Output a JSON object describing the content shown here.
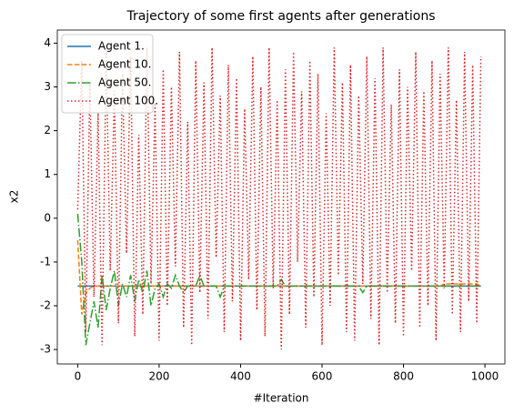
{
  "chart_data": {
    "type": "line",
    "title": "Trajectory of some first agents after generations",
    "xlabel": "#Iteration",
    "ylabel": "x2",
    "x": [
      0,
      10,
      20,
      30,
      40,
      50,
      60,
      70,
      80,
      90,
      100,
      110,
      120,
      130,
      140,
      150,
      160,
      170,
      180,
      190,
      200,
      210,
      220,
      230,
      240,
      250,
      260,
      270,
      280,
      290,
      300,
      310,
      320,
      330,
      340,
      350,
      360,
      370,
      380,
      390,
      400,
      410,
      420,
      430,
      440,
      450,
      460,
      470,
      480,
      490,
      500,
      510,
      520,
      530,
      540,
      550,
      560,
      570,
      580,
      590,
      600,
      610,
      620,
      630,
      640,
      650,
      660,
      670,
      680,
      690,
      700,
      710,
      720,
      730,
      740,
      750,
      760,
      770,
      780,
      790,
      800,
      810,
      820,
      830,
      840,
      850,
      860,
      870,
      880,
      890,
      900,
      910,
      920,
      930,
      940,
      950,
      960,
      970,
      980,
      990
    ],
    "series": [
      {
        "name": "Agent 1.",
        "color": "#1f77b4",
        "linestyle": "solid",
        "values": [
          -1.55,
          -1.55,
          -1.55,
          -1.55,
          -1.55,
          -1.55,
          -1.55,
          -1.55,
          -1.55,
          -1.55,
          -1.55,
          -1.55,
          -1.55,
          -1.55,
          -1.55,
          -1.55,
          -1.55,
          -1.55,
          -1.55,
          -1.55,
          -1.55,
          -1.55,
          -1.55,
          -1.55,
          -1.55,
          -1.55,
          -1.55,
          -1.55,
          -1.55,
          -1.55,
          -1.55,
          -1.55,
          -1.55,
          -1.55,
          -1.55,
          -1.55,
          -1.55,
          -1.55,
          -1.55,
          -1.55,
          -1.55,
          -1.55,
          -1.55,
          -1.55,
          -1.55,
          -1.55,
          -1.55,
          -1.55,
          -1.55,
          -1.55,
          -1.55,
          -1.55,
          -1.55,
          -1.55,
          -1.55,
          -1.55,
          -1.55,
          -1.55,
          -1.55,
          -1.55,
          -1.55,
          -1.55,
          -1.55,
          -1.55,
          -1.55,
          -1.55,
          -1.55,
          -1.55,
          -1.55,
          -1.55,
          -1.55,
          -1.55,
          -1.55,
          -1.55,
          -1.55,
          -1.55,
          -1.55,
          -1.55,
          -1.55,
          -1.55,
          -1.55,
          -1.55,
          -1.55,
          -1.55,
          -1.55,
          -1.55,
          -1.55,
          -1.55,
          -1.55,
          -1.55,
          -1.55,
          -1.55,
          -1.55,
          -1.55,
          -1.55,
          -1.55,
          -1.55,
          -1.55,
          -1.55,
          -1.55
        ]
      },
      {
        "name": "Agent 10.",
        "color": "#ff7f0e",
        "linestyle": "dashed",
        "values": [
          -0.5,
          -2.2,
          -1.7,
          -1.6,
          -1.55,
          -1.55,
          -1.55,
          -1.55,
          -1.55,
          -1.55,
          -1.55,
          -1.55,
          -1.55,
          -1.55,
          -1.55,
          -1.55,
          -1.55,
          -1.55,
          -1.55,
          -1.55,
          -1.55,
          -1.55,
          -1.55,
          -1.55,
          -1.55,
          -1.55,
          -1.55,
          -1.55,
          -1.55,
          -1.55,
          -1.55,
          -1.55,
          -1.55,
          -1.55,
          -1.55,
          -1.55,
          -1.55,
          -1.55,
          -1.55,
          -1.55,
          -1.55,
          -1.55,
          -1.55,
          -1.55,
          -1.55,
          -1.55,
          -1.55,
          -1.55,
          -1.55,
          -1.55,
          -1.55,
          -1.55,
          -1.55,
          -1.55,
          -1.55,
          -1.55,
          -1.55,
          -1.55,
          -1.55,
          -1.55,
          -1.55,
          -1.55,
          -1.55,
          -1.55,
          -1.55,
          -1.55,
          -1.55,
          -1.55,
          -1.55,
          -1.55,
          -1.55,
          -1.55,
          -1.55,
          -1.55,
          -1.55,
          -1.55,
          -1.55,
          -1.55,
          -1.55,
          -1.55,
          -1.55,
          -1.55,
          -1.55,
          -1.55,
          -1.55,
          -1.55,
          -1.55,
          -1.55,
          -1.55,
          -1.55,
          -1.5,
          -1.5,
          -1.5,
          -1.5,
          -1.5,
          -1.5,
          -1.5,
          -1.5,
          -1.5,
          -1.55
        ]
      },
      {
        "name": "Agent 50.",
        "color": "#2ca02c",
        "linestyle": "dashdot",
        "values": [
          0.1,
          -1.0,
          -2.9,
          -2.4,
          -1.9,
          -2.5,
          -1.3,
          -2.1,
          -1.6,
          -1.2,
          -2.0,
          -1.5,
          -1.8,
          -1.3,
          -1.9,
          -1.4,
          -1.7,
          -1.2,
          -2.0,
          -1.6,
          -1.5,
          -1.8,
          -1.5,
          -1.6,
          -1.3,
          -1.55,
          -1.7,
          -1.55,
          -1.55,
          -1.55,
          -1.3,
          -1.55,
          -1.55,
          -1.55,
          -1.55,
          -1.8,
          -1.55,
          -1.55,
          -1.55,
          -1.55,
          -1.55,
          -1.55,
          -1.55,
          -1.55,
          -1.55,
          -1.55,
          -1.55,
          -1.55,
          -1.55,
          -1.55,
          -1.4,
          -1.55,
          -1.55,
          -1.55,
          -1.55,
          -1.55,
          -1.55,
          -1.55,
          -1.55,
          -1.55,
          -1.55,
          -1.55,
          -1.55,
          -1.55,
          -1.55,
          -1.55,
          -1.55,
          -1.55,
          -1.55,
          -1.55,
          -1.7,
          -1.55,
          -1.55,
          -1.55,
          -1.55,
          -1.55,
          -1.55,
          -1.55,
          -1.55,
          -1.55,
          -1.55,
          -1.55,
          -1.55,
          -1.55,
          -1.55,
          -1.55,
          -1.55,
          -1.55,
          -1.55,
          -1.55,
          -1.55,
          -1.55,
          -1.55,
          -1.55,
          -1.55,
          -1.55,
          -1.55,
          -1.55,
          -1.55,
          -1.55
        ]
      },
      {
        "name": "Agent 100.",
        "color": "#d62728",
        "linestyle": "dotted",
        "values": [
          0.2,
          3.6,
          -2.6,
          3.1,
          -1.8,
          2.4,
          -2.9,
          3.8,
          -1.2,
          2.9,
          -2.4,
          3.3,
          -0.8,
          3.7,
          -2.7,
          1.9,
          -2.2,
          3.9,
          -1.5,
          2.6,
          -2.8,
          3.4,
          -2.0,
          3.0,
          -1.1,
          3.8,
          -2.5,
          2.2,
          -2.9,
          3.6,
          -1.7,
          3.1,
          -2.3,
          3.9,
          -0.9,
          2.8,
          -2.6,
          3.5,
          -1.9,
          3.2,
          -2.8,
          2.5,
          -1.4,
          3.7,
          -2.1,
          3.0,
          -2.7,
          3.9,
          -1.6,
          2.7,
          -3.0,
          3.4,
          -2.2,
          3.8,
          -1.0,
          2.9,
          -2.5,
          3.6,
          -1.8,
          3.3,
          -2.9,
          2.4,
          -2.0,
          3.9,
          -1.3,
          3.1,
          -2.6,
          3.5,
          -2.8,
          2.8,
          -1.5,
          3.7,
          -2.3,
          3.2,
          -2.9,
          3.9,
          -1.7,
          2.6,
          -2.4,
          3.4,
          -2.7,
          3.0,
          -1.2,
          3.8,
          -2.5,
          2.9,
          -2.0,
          3.6,
          -2.8,
          3.3,
          -1.6,
          3.9,
          -2.2,
          2.7,
          -2.6,
          3.8,
          -1.9,
          3.5,
          -2.4,
          3.7
        ]
      }
    ],
    "xlim": [
      -50,
      1049
    ],
    "ylim": [
      -3.33,
      4.3
    ],
    "xticks": [
      0,
      200,
      400,
      600,
      800,
      1000
    ],
    "yticks": [
      -3,
      -2,
      -1,
      0,
      1,
      2,
      3,
      4
    ],
    "legend": "upper left"
  }
}
